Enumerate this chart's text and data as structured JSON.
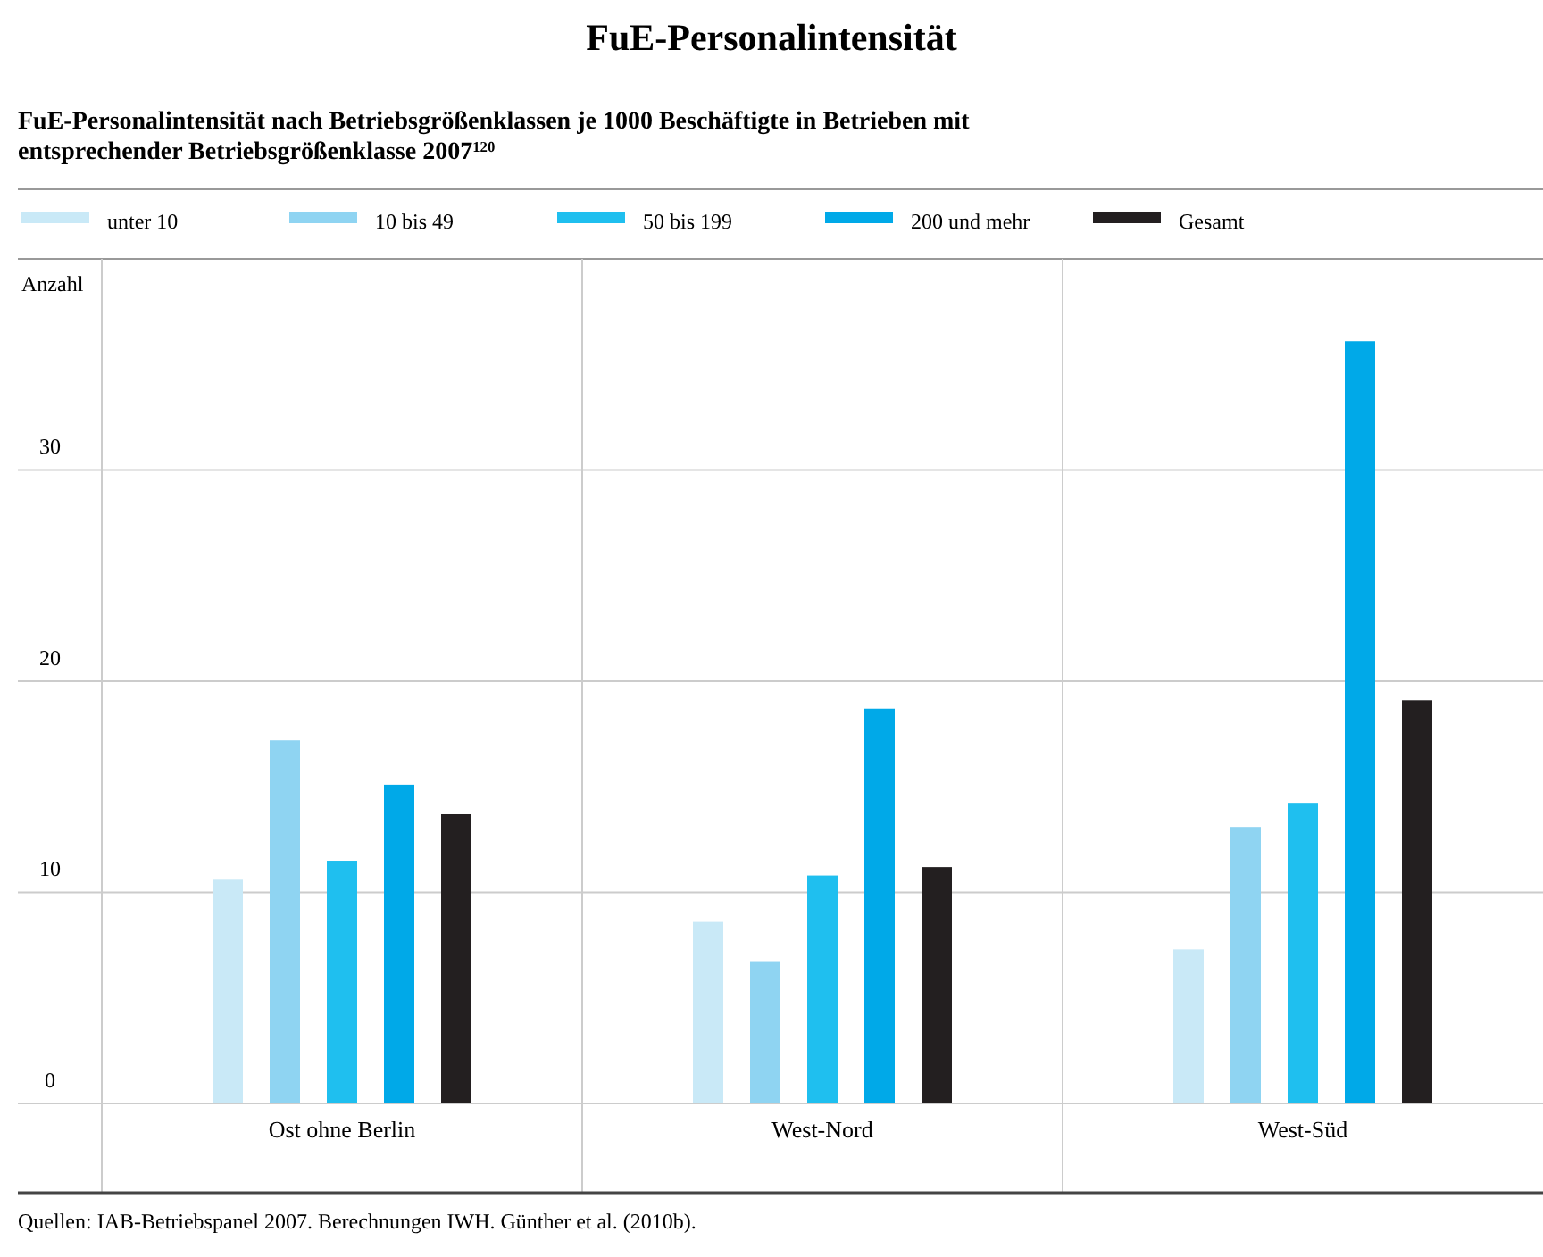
{
  "chart_data": {
    "type": "bar",
    "title": "FuE-Personalintensität",
    "subtitle": "FuE-Personalintensität nach Betriebsgrößenklassen je 1000 Beschäftigte in Betrieben mit entsprechender Betriebsgrößenklasse 2007$^{120}$",
    "ylabel": "Anzahl",
    "categories": [
      "Ost ohne Berlin",
      "West-Nord",
      "West-Süd"
    ],
    "series": [
      {
        "name": "unter 10",
        "color": "#c9e9f7",
        "values": [
          10.6,
          8.6,
          7.3
        ]
      },
      {
        "name": "10 bis 49",
        "color": "#8fd4f2",
        "values": [
          17.2,
          6.7,
          13.1
        ]
      },
      {
        "name": "50 bis 199",
        "color": "#1fbfef",
        "values": [
          11.5,
          10.8,
          14.2
        ]
      },
      {
        "name": "200 und mehr",
        "color": "#00a9e8",
        "values": [
          15.1,
          18.7,
          36.1
        ]
      },
      {
        "name": "Gesamt",
        "color": "#231f20",
        "values": [
          13.7,
          11.2,
          19.1
        ]
      }
    ],
    "ylim": [
      0,
      40
    ],
    "yticks": [
      0,
      10,
      20,
      30
    ],
    "grid": true,
    "legend": "top",
    "annotations": [
      "Quellen: IAB-Betriebspanel 2007. Berechnungen IWH. Günther et al. (2010b)."
    ]
  }
}
